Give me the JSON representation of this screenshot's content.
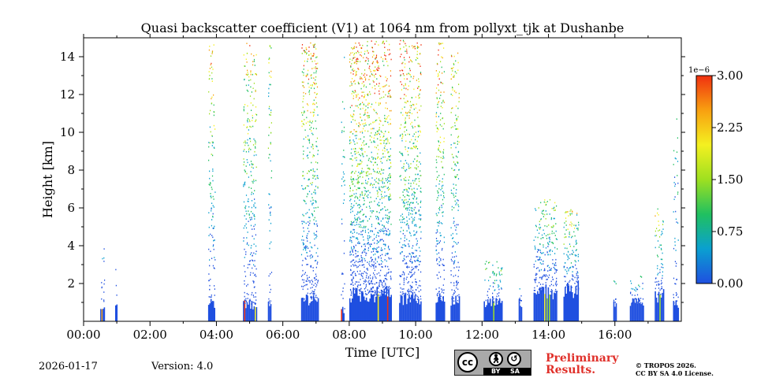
{
  "chart_data": {
    "type": "heatmap",
    "title": "Quasi backscatter coefficient (V1) at 1064 nm from pollyxt_tjk at Dushanbe",
    "xlabel": "Time [UTC]",
    "ylabel": "Height [km]",
    "xlim_hours": [
      0,
      18
    ],
    "ylim_km": [
      0,
      15
    ],
    "x_ticks": [
      {
        "value": 0,
        "label": "00:00"
      },
      {
        "value": 2,
        "label": "02:00"
      },
      {
        "value": 4,
        "label": "04:00"
      },
      {
        "value": 6,
        "label": "06:00"
      },
      {
        "value": 8,
        "label": "08:00"
      },
      {
        "value": 10,
        "label": "10:00"
      },
      {
        "value": 12,
        "label": "12:00"
      },
      {
        "value": 14,
        "label": "14:00"
      },
      {
        "value": 16,
        "label": "16:00"
      }
    ],
    "y_ticks": [
      {
        "value": 2,
        "label": "2"
      },
      {
        "value": 4,
        "label": "4"
      },
      {
        "value": 6,
        "label": "6"
      },
      {
        "value": 8,
        "label": "8"
      },
      {
        "value": 10,
        "label": "10"
      },
      {
        "value": 12,
        "label": "12"
      },
      {
        "value": 14,
        "label": "14"
      }
    ],
    "colorbar": {
      "range": [
        0,
        3.0
      ],
      "exponent_label": "1e−6",
      "ticks": [
        {
          "value": 0.0,
          "label": "0.00"
        },
        {
          "value": 0.75,
          "label": "0.75"
        },
        {
          "value": 1.5,
          "label": "1.50"
        },
        {
          "value": 2.25,
          "label": "2.25"
        },
        {
          "value": 3.0,
          "label": "3.00"
        }
      ],
      "colors": [
        "#1f4fe0",
        "#0aa0d0",
        "#20c060",
        "#9ee020",
        "#f4f020",
        "#f8a010",
        "#f03010"
      ]
    },
    "profiles": [
      {
        "t0": 0.5,
        "t1": 0.62,
        "top": 4.6,
        "base": 0.6,
        "w": 0.35,
        "density": 0.25
      },
      {
        "t0": 0.95,
        "t1": 1.0,
        "top": 4.0,
        "base": 0.8,
        "w": 0.3,
        "density": 0.2
      },
      {
        "t0": 3.75,
        "t1": 3.95,
        "top": 14.7,
        "base": 1.0,
        "w": 0.8,
        "density": 0.45
      },
      {
        "t0": 4.8,
        "t1": 5.2,
        "top": 14.8,
        "base": 0.9,
        "w": 0.8,
        "density": 0.5
      },
      {
        "t0": 5.55,
        "t1": 5.65,
        "top": 14.8,
        "base": 1.0,
        "w": 0.7,
        "density": 0.45
      },
      {
        "t0": 6.55,
        "t1": 7.05,
        "top": 14.9,
        "base": 1.2,
        "w": 0.9,
        "density": 0.6
      },
      {
        "t0": 7.75,
        "t1": 7.85,
        "top": 14.0,
        "base": 0.6,
        "w": 0.5,
        "density": 0.3
      },
      {
        "t0": 8.0,
        "t1": 9.25,
        "top": 14.9,
        "base": 1.4,
        "w": 1.0,
        "density": 0.75
      },
      {
        "t0": 9.5,
        "t1": 10.15,
        "top": 14.9,
        "base": 1.2,
        "w": 0.95,
        "density": 0.65
      },
      {
        "t0": 10.6,
        "t1": 10.85,
        "top": 14.9,
        "base": 1.2,
        "w": 0.9,
        "density": 0.6
      },
      {
        "t0": 11.05,
        "t1": 11.3,
        "top": 14.3,
        "base": 1.1,
        "w": 0.8,
        "density": 0.55
      },
      {
        "t0": 12.05,
        "t1": 12.6,
        "top": 3.2,
        "base": 1.0,
        "w": 0.55,
        "density": 0.4
      },
      {
        "t0": 13.1,
        "t1": 13.2,
        "top": 2.2,
        "base": 1.0,
        "w": 0.4,
        "density": 0.4
      },
      {
        "t0": 13.55,
        "t1": 14.25,
        "top": 6.5,
        "base": 1.6,
        "w": 0.6,
        "density": 0.55
      },
      {
        "t0": 14.45,
        "t1": 14.9,
        "top": 6.0,
        "base": 1.7,
        "w": 0.75,
        "density": 0.55
      },
      {
        "t0": 15.95,
        "t1": 16.05,
        "top": 2.2,
        "base": 1.0,
        "w": 0.4,
        "density": 0.35
      },
      {
        "t0": 16.45,
        "t1": 16.85,
        "top": 2.5,
        "base": 1.0,
        "w": 0.45,
        "density": 0.4
      },
      {
        "t0": 17.2,
        "t1": 17.45,
        "top": 6.0,
        "base": 1.4,
        "w": 0.7,
        "density": 0.5
      },
      {
        "t0": 17.75,
        "t1": 17.9,
        "top": 11.0,
        "base": 1.0,
        "w": 0.5,
        "density": 0.3
      }
    ]
  },
  "footer": {
    "date": "2026-01-17",
    "version": "Version: 4.0",
    "license_badge": {
      "cc": "cc",
      "by": "BY",
      "sa": "SA"
    },
    "preliminary_line1": "Preliminary",
    "preliminary_line2": "Results.",
    "copyright_line1": "© TROPOS 2026.",
    "copyright_line2": "CC BY SA 4.0 License."
  }
}
